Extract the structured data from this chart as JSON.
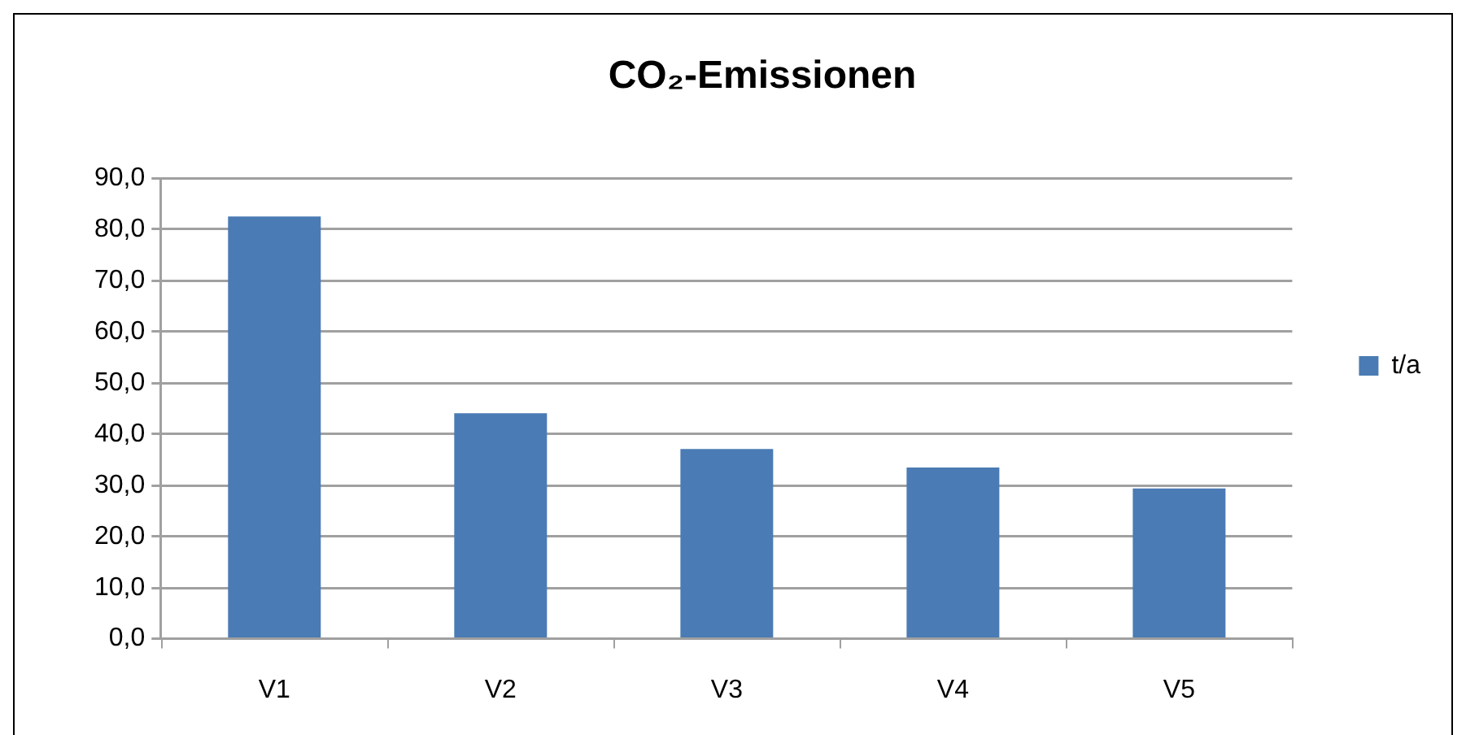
{
  "chart_data": {
    "type": "bar",
    "title": "CO₂-Emissionen",
    "categories": [
      "V1",
      "V2",
      "V3",
      "V4",
      "V5"
    ],
    "series": [
      {
        "name": "t/a",
        "color": "#4a7bb4",
        "values": [
          82.6,
          44.1,
          37.1,
          33.5,
          29.4
        ]
      }
    ],
    "ylim": [
      0,
      90
    ],
    "yticks": [
      {
        "value": 0,
        "label": "0,0"
      },
      {
        "value": 10,
        "label": "10,0"
      },
      {
        "value": 20,
        "label": "20,0"
      },
      {
        "value": 30,
        "label": "30,0"
      },
      {
        "value": 40,
        "label": "40,0"
      },
      {
        "value": 50,
        "label": "50,0"
      },
      {
        "value": 60,
        "label": "60,0"
      },
      {
        "value": 70,
        "label": "70,0"
      },
      {
        "value": 80,
        "label": "80,0"
      },
      {
        "value": 90,
        "label": "90,0"
      }
    ],
    "grid": "y",
    "legend": "right"
  }
}
